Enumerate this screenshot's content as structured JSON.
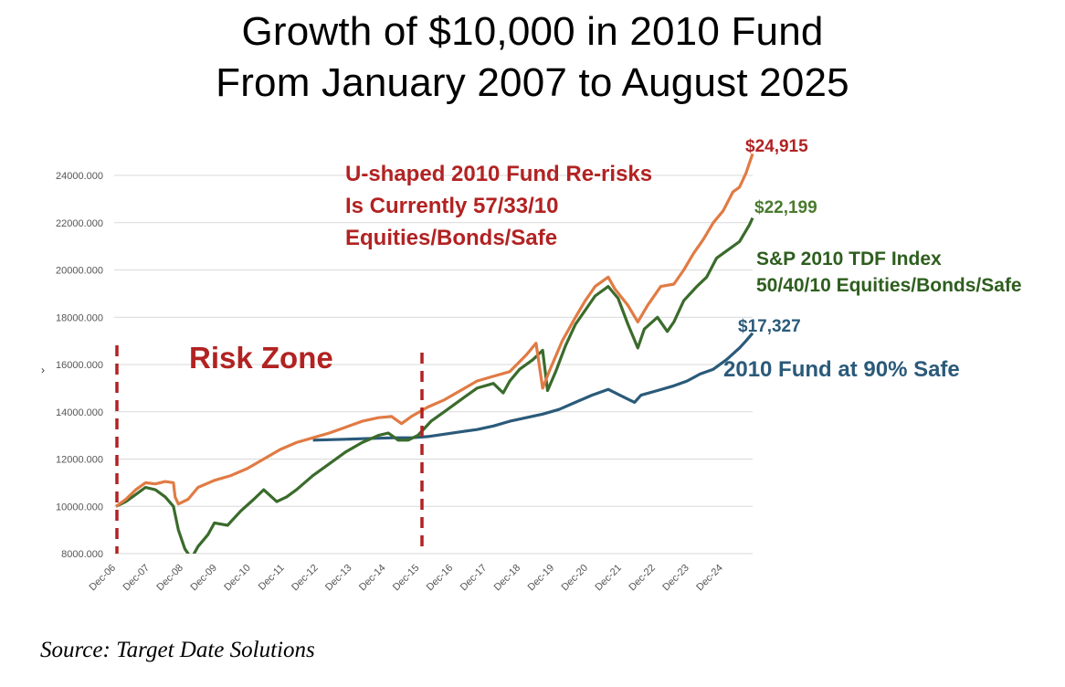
{
  "title_line1": "Growth of $10,000 in 2010 Fund",
  "title_line2": "From January 2007 to August 2025",
  "source": "Source: Target Date Solutions",
  "colors": {
    "orange": "#E07B44",
    "green": "#3A6B2B",
    "blue": "#2A5A7A",
    "red": "#B22222",
    "annot_green": "#2E5E1E",
    "annot_blue": "#2A5A7A",
    "gridline": "#d9d9d9",
    "axis_text": "#555555"
  },
  "annotations": {
    "ushaped_1": "U-shaped 2010 Fund Re-risks",
    "ushaped_2": "Is Currently 57/33/10",
    "ushaped_3": "Equities/Bonds/Safe",
    "risk_zone": "Risk Zone",
    "sp_1": "S&P 2010 TDF Index",
    "sp_2": "50/40/10 Equities/Bonds/Safe",
    "fund90": "2010 Fund at 90% Safe",
    "end_orange": "$24,915",
    "end_green": "$22,199",
    "end_blue": "$17,327",
    "left_mark": "›"
  },
  "chart_data": {
    "type": "line",
    "title": "Growth of $10,000 in 2010 Fund From January 2007 to August 2025",
    "xlabel": "",
    "ylabel": "",
    "ylim": [
      8000,
      24000
    ],
    "y_ticks": [
      "8000.000",
      "10000.000",
      "12000.000",
      "14000.000",
      "16000.000",
      "18000.000",
      "20000.000",
      "22000.000",
      "24000.000"
    ],
    "x_ticks": [
      "Dec-06",
      "Dec-07",
      "Dec-08",
      "Dec-09",
      "Dec-10",
      "Dec-11",
      "Dec-12",
      "Dec-13",
      "Dec-14",
      "Dec-15",
      "Dec-16",
      "Dec-17",
      "Dec-18",
      "Dec-19",
      "Dec-20",
      "Dec-21",
      "Dec-22",
      "Dec-23",
      "Dec-24"
    ],
    "grid": "horizontal",
    "risk_zone_lines_x": [
      2007.0,
      2016.0
    ],
    "series": [
      {
        "name": "U-shaped 2010 Fund",
        "color": "#E07B44",
        "points": [
          [
            2007.0,
            10000
          ],
          [
            2007.3,
            10300
          ],
          [
            2007.6,
            10700
          ],
          [
            2007.9,
            11000
          ],
          [
            2008.2,
            10950
          ],
          [
            2008.5,
            11050
          ],
          [
            2008.75,
            11000
          ],
          [
            2008.8,
            10400
          ],
          [
            2008.9,
            10100
          ],
          [
            2009.2,
            10300
          ],
          [
            2009.5,
            10800
          ],
          [
            2010.0,
            11100
          ],
          [
            2010.5,
            11300
          ],
          [
            2011.0,
            11600
          ],
          [
            2011.5,
            12000
          ],
          [
            2012.0,
            12400
          ],
          [
            2012.5,
            12700
          ],
          [
            2013.0,
            12900
          ],
          [
            2013.5,
            13100
          ],
          [
            2014.0,
            13350
          ],
          [
            2014.5,
            13600
          ],
          [
            2015.0,
            13750
          ],
          [
            2015.4,
            13800
          ],
          [
            2015.7,
            13500
          ],
          [
            2016.0,
            13800
          ],
          [
            2016.5,
            14200
          ],
          [
            2017.0,
            14500
          ],
          [
            2017.5,
            14900
          ],
          [
            2018.0,
            15300
          ],
          [
            2018.5,
            15500
          ],
          [
            2019.0,
            15700
          ],
          [
            2019.5,
            16400
          ],
          [
            2019.8,
            16900
          ],
          [
            2020.0,
            15000
          ],
          [
            2020.2,
            15700
          ],
          [
            2020.6,
            17000
          ],
          [
            2021.0,
            18000
          ],
          [
            2021.3,
            18700
          ],
          [
            2021.6,
            19300
          ],
          [
            2022.0,
            19700
          ],
          [
            2022.2,
            19200
          ],
          [
            2022.6,
            18500
          ],
          [
            2022.9,
            17800
          ],
          [
            2023.2,
            18500
          ],
          [
            2023.6,
            19300
          ],
          [
            2024.0,
            19400
          ],
          [
            2024.3,
            20000
          ],
          [
            2024.6,
            20700
          ],
          [
            2024.9,
            21300
          ],
          [
            2025.2,
            22000
          ],
          [
            2025.5,
            22500
          ],
          [
            2025.8,
            23300
          ],
          [
            2026.0,
            23500
          ],
          [
            2026.2,
            24100
          ],
          [
            2026.4,
            24915
          ]
        ]
      },
      {
        "name": "S&P 2010 TDF Index",
        "color": "#3A6B2B",
        "points": [
          [
            2007.0,
            10000
          ],
          [
            2007.3,
            10200
          ],
          [
            2007.6,
            10500
          ],
          [
            2007.9,
            10800
          ],
          [
            2008.2,
            10700
          ],
          [
            2008.5,
            10400
          ],
          [
            2008.75,
            10000
          ],
          [
            2008.9,
            9000
          ],
          [
            2009.1,
            8200
          ],
          [
            2009.3,
            7800
          ],
          [
            2009.5,
            8300
          ],
          [
            2009.8,
            8800
          ],
          [
            2010.0,
            9300
          ],
          [
            2010.4,
            9200
          ],
          [
            2010.8,
            9800
          ],
          [
            2011.2,
            10300
          ],
          [
            2011.5,
            10700
          ],
          [
            2011.9,
            10200
          ],
          [
            2012.2,
            10400
          ],
          [
            2012.5,
            10700
          ],
          [
            2013.0,
            11300
          ],
          [
            2013.5,
            11800
          ],
          [
            2014.0,
            12300
          ],
          [
            2014.5,
            12700
          ],
          [
            2015.0,
            13000
          ],
          [
            2015.3,
            13100
          ],
          [
            2015.6,
            12800
          ],
          [
            2015.9,
            12800
          ],
          [
            2016.2,
            13000
          ],
          [
            2016.6,
            13600
          ],
          [
            2017.0,
            14000
          ],
          [
            2017.5,
            14500
          ],
          [
            2018.0,
            15000
          ],
          [
            2018.5,
            15200
          ],
          [
            2018.8,
            14800
          ],
          [
            2019.0,
            15300
          ],
          [
            2019.3,
            15800
          ],
          [
            2019.7,
            16200
          ],
          [
            2020.0,
            16600
          ],
          [
            2020.15,
            14900
          ],
          [
            2020.4,
            15700
          ],
          [
            2020.7,
            16800
          ],
          [
            2021.0,
            17700
          ],
          [
            2021.3,
            18300
          ],
          [
            2021.6,
            18900
          ],
          [
            2022.0,
            19300
          ],
          [
            2022.3,
            18800
          ],
          [
            2022.6,
            17700
          ],
          [
            2022.9,
            16700
          ],
          [
            2023.1,
            17500
          ],
          [
            2023.5,
            18000
          ],
          [
            2023.8,
            17400
          ],
          [
            2024.0,
            17800
          ],
          [
            2024.3,
            18700
          ],
          [
            2024.7,
            19300
          ],
          [
            2025.0,
            19700
          ],
          [
            2025.3,
            20500
          ],
          [
            2025.7,
            20900
          ],
          [
            2026.0,
            21200
          ],
          [
            2026.3,
            21900
          ],
          [
            2026.4,
            22199
          ]
        ]
      },
      {
        "name": "2010 Fund at 90% Safe",
        "color": "#2A5A7A",
        "points": [
          [
            2013.0,
            12800
          ],
          [
            2013.5,
            12820
          ],
          [
            2014.0,
            12840
          ],
          [
            2014.5,
            12860
          ],
          [
            2015.0,
            12880
          ],
          [
            2015.5,
            12900
          ],
          [
            2016.0,
            12900
          ],
          [
            2016.5,
            12950
          ],
          [
            2017.0,
            13050
          ],
          [
            2017.5,
            13150
          ],
          [
            2018.0,
            13250
          ],
          [
            2018.5,
            13400
          ],
          [
            2019.0,
            13600
          ],
          [
            2019.5,
            13750
          ],
          [
            2020.0,
            13900
          ],
          [
            2020.5,
            14100
          ],
          [
            2021.0,
            14400
          ],
          [
            2021.5,
            14700
          ],
          [
            2022.0,
            14950
          ],
          [
            2022.5,
            14600
          ],
          [
            2022.8,
            14400
          ],
          [
            2023.0,
            14700
          ],
          [
            2023.5,
            14900
          ],
          [
            2024.0,
            15100
          ],
          [
            2024.4,
            15300
          ],
          [
            2024.8,
            15600
          ],
          [
            2025.2,
            15800
          ],
          [
            2025.6,
            16200
          ],
          [
            2026.0,
            16700
          ],
          [
            2026.2,
            17000
          ],
          [
            2026.4,
            17327
          ]
        ]
      }
    ]
  }
}
